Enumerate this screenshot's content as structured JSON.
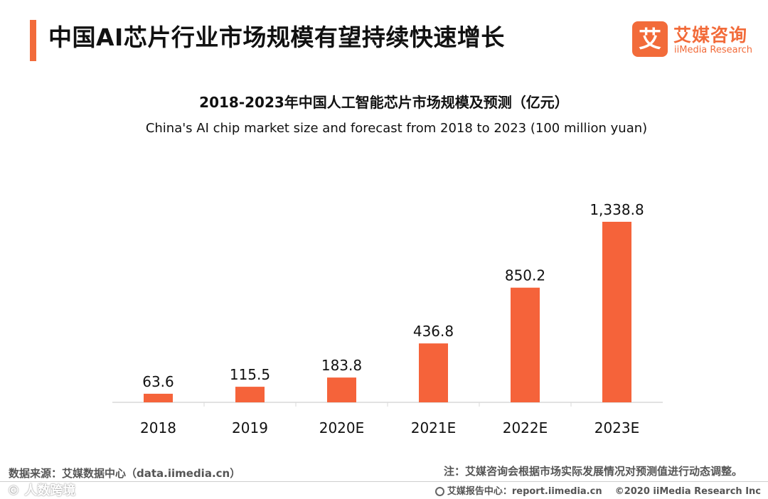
{
  "header": {
    "title": "中国AI芯片行业市场规模有望持续快速增长"
  },
  "logo": {
    "mark": "艾",
    "name_cn": "艾媒咨询",
    "name_en": "iiMedia Research"
  },
  "chart_data": {
    "type": "bar",
    "title": "2018-2023年中国人工智能芯片市场规模及预测（亿元）",
    "subtitle": "China's  AI chip market size and forecast from 2018 to 2023 (100 million yuan)",
    "categories": [
      "2018",
      "2019",
      "2020E",
      "2021E",
      "2022E",
      "2023E"
    ],
    "values": [
      63.6,
      115.5,
      183.8,
      436.8,
      850.2,
      1338.8
    ],
    "value_labels": [
      "63.6",
      "115.5",
      "183.8",
      "436.8",
      "850.2",
      "1,338.8"
    ],
    "xlabel": "",
    "ylabel": "",
    "ylim": [
      0,
      1338.8
    ],
    "grid": false,
    "color": "#f5633a"
  },
  "footer": {
    "source": "数据来源：艾媒数据中心（data.iimedia.cn）",
    "note": "注：艾媒咨询会根据市场实际发展情况对预测值进行动态调整。",
    "report_site": "艾媒报告中心：report.iimedia.cn",
    "copyright": "©2020  iiMedia Research  Inc",
    "watermark": "©  人数跨境"
  },
  "colors": {
    "accent": "#f26b3a",
    "bar": "#f5633a"
  }
}
